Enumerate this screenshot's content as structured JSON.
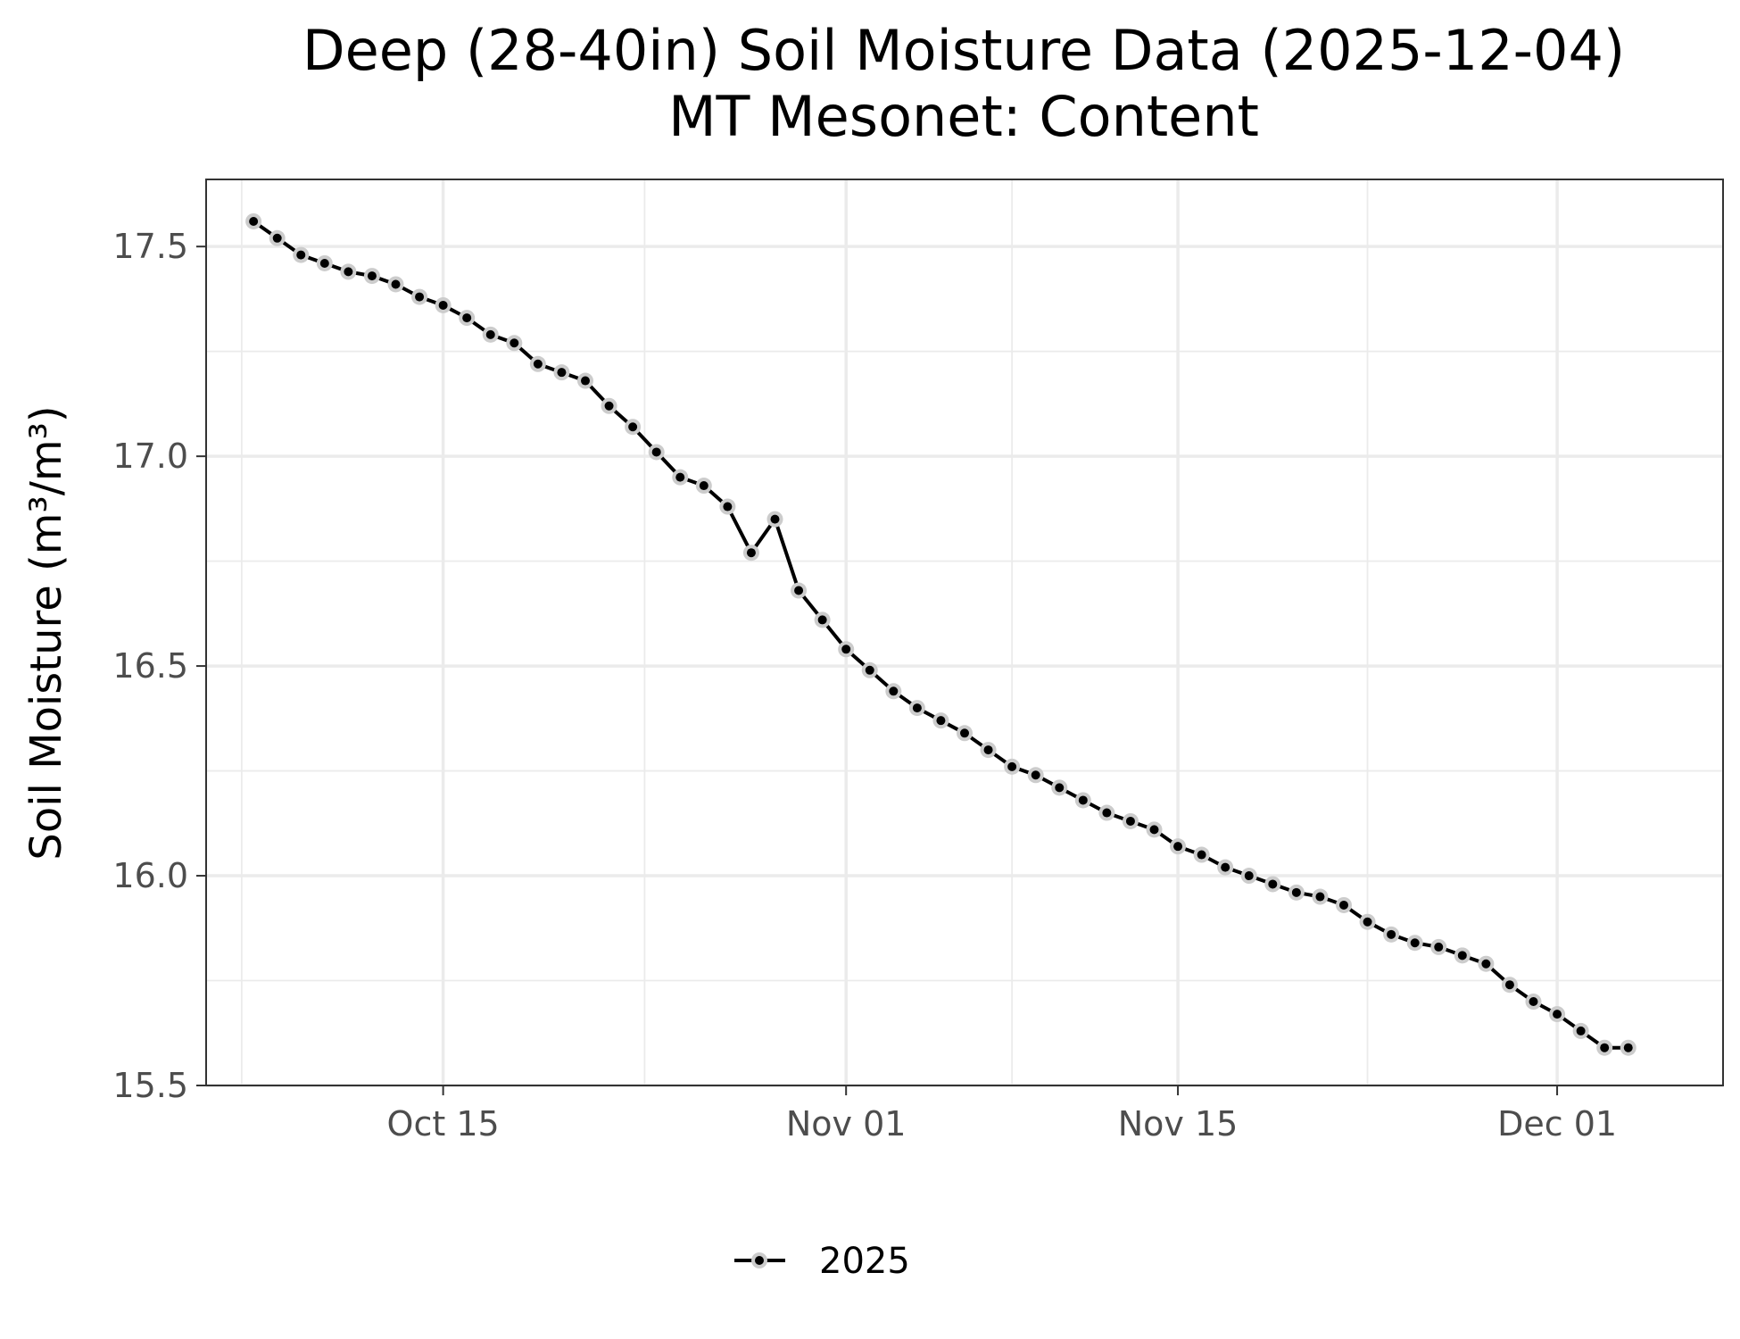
{
  "chart_data": {
    "type": "line",
    "title": "Deep (28-40in) Soil Moisture Data (2025-12-04)",
    "subtitle": "MT Mesonet: Content",
    "ylabel": "Soil Moisture (m³/m³)",
    "xlabel": "",
    "x_range": [
      "2025-10-05",
      "2025-12-08"
    ],
    "ylim": [
      15.5,
      17.66
    ],
    "y_ticks": [
      {
        "value": 15.5,
        "label": "15.5"
      },
      {
        "value": 16.0,
        "label": "16.0"
      },
      {
        "value": 16.5,
        "label": "16.5"
      },
      {
        "value": 17.0,
        "label": "17.0"
      },
      {
        "value": 17.5,
        "label": "17.5"
      }
    ],
    "x_ticks": [
      {
        "value": "2025-10-15",
        "label": "Oct 15"
      },
      {
        "value": "2025-11-01",
        "label": "Nov 01"
      },
      {
        "value": "2025-11-15",
        "label": "Nov 15"
      },
      {
        "value": "2025-12-01",
        "label": "Dec 01"
      }
    ],
    "grid": true,
    "legend_position": "bottom",
    "series": [
      {
        "name": "2025",
        "color": "#000000",
        "point_halo_color": "#cccccc",
        "x": [
          "2025-10-07",
          "2025-10-08",
          "2025-10-09",
          "2025-10-10",
          "2025-10-11",
          "2025-10-12",
          "2025-10-13",
          "2025-10-14",
          "2025-10-15",
          "2025-10-16",
          "2025-10-17",
          "2025-10-18",
          "2025-10-19",
          "2025-10-20",
          "2025-10-21",
          "2025-10-22",
          "2025-10-23",
          "2025-10-24",
          "2025-10-25",
          "2025-10-26",
          "2025-10-27",
          "2025-10-28",
          "2025-10-29",
          "2025-10-30",
          "2025-10-31",
          "2025-11-01",
          "2025-11-02",
          "2025-11-03",
          "2025-11-04",
          "2025-11-05",
          "2025-11-06",
          "2025-11-07",
          "2025-11-08",
          "2025-11-09",
          "2025-11-10",
          "2025-11-11",
          "2025-11-12",
          "2025-11-13",
          "2025-11-14",
          "2025-11-15",
          "2025-11-16",
          "2025-11-17",
          "2025-11-18",
          "2025-11-19",
          "2025-11-20",
          "2025-11-21",
          "2025-11-22",
          "2025-11-23",
          "2025-11-24",
          "2025-11-25",
          "2025-11-26",
          "2025-11-27",
          "2025-11-28",
          "2025-11-29",
          "2025-11-30",
          "2025-12-01",
          "2025-12-02",
          "2025-12-03",
          "2025-12-04"
        ],
        "values": [
          17.56,
          17.52,
          17.48,
          17.46,
          17.44,
          17.43,
          17.41,
          17.38,
          17.36,
          17.33,
          17.29,
          17.27,
          17.22,
          17.2,
          17.18,
          17.12,
          17.07,
          17.01,
          16.95,
          16.93,
          16.88,
          16.77,
          16.85,
          16.68,
          16.61,
          16.54,
          16.49,
          16.44,
          16.4,
          16.37,
          16.34,
          16.3,
          16.26,
          16.24,
          16.21,
          16.18,
          16.15,
          16.13,
          16.11,
          16.07,
          16.05,
          16.02,
          16.0,
          15.98,
          15.96,
          15.95,
          15.93,
          15.89,
          15.86,
          15.84,
          15.83,
          15.81,
          15.79,
          15.74,
          15.7,
          15.67,
          15.63,
          15.59,
          15.59
        ]
      }
    ]
  }
}
